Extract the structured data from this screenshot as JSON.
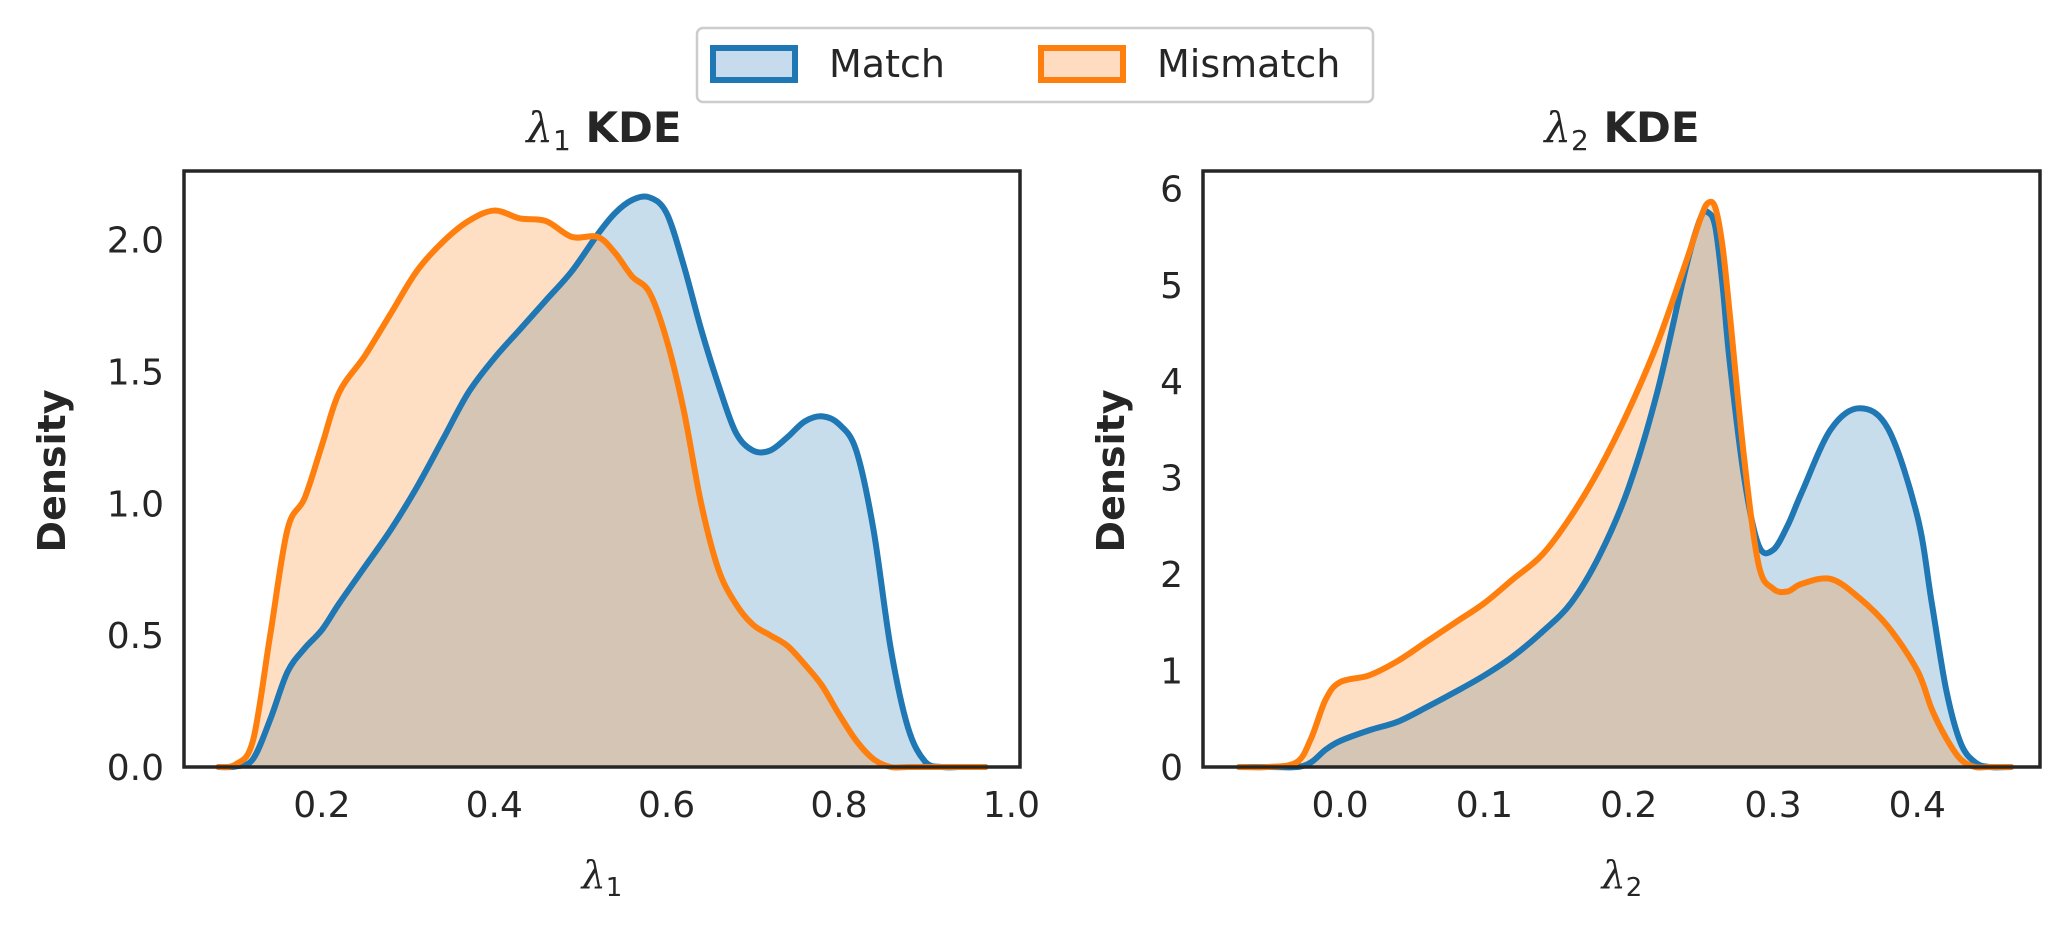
{
  "colors": {
    "match": "#1f77b4",
    "mismatch": "#ff7f0e",
    "frame": "#262626"
  },
  "legend": {
    "location": "top-center",
    "items": [
      "Match",
      "Mismatch"
    ]
  },
  "chart_data": [
    {
      "type": "area",
      "title_symbol": "λ",
      "title_sub": "1",
      "title_suffix": " KDE",
      "xlabel_symbol": "λ",
      "xlabel_sub": "1",
      "ylabel": "Density",
      "xlim": [
        0.04,
        1.01
      ],
      "ylim": [
        0,
        2.26
      ],
      "xticks": [
        0.2,
        0.4,
        0.6,
        0.8,
        1.0
      ],
      "xtick_labels": [
        "0.2",
        "0.4",
        "0.6",
        "0.8",
        "1.0"
      ],
      "yticks": [
        0.0,
        0.5,
        1.0,
        1.5,
        2.0
      ],
      "ytick_labels": [
        "0.0",
        "0.5",
        "1.0",
        "1.5",
        "2.0"
      ],
      "grid": false,
      "series": [
        {
          "name": "Match",
          "x": [
            0.08,
            0.1,
            0.12,
            0.14,
            0.16,
            0.18,
            0.2,
            0.22,
            0.25,
            0.28,
            0.31,
            0.34,
            0.37,
            0.4,
            0.43,
            0.46,
            0.49,
            0.52,
            0.54,
            0.56,
            0.58,
            0.6,
            0.62,
            0.64,
            0.66,
            0.68,
            0.7,
            0.72,
            0.74,
            0.76,
            0.78,
            0.8,
            0.82,
            0.84,
            0.86,
            0.88,
            0.9,
            0.92,
            0.94,
            0.97
          ],
          "y": [
            0.0,
            0.002,
            0.03,
            0.18,
            0.36,
            0.45,
            0.52,
            0.62,
            0.76,
            0.9,
            1.06,
            1.24,
            1.42,
            1.55,
            1.66,
            1.77,
            1.88,
            2.02,
            2.1,
            2.15,
            2.16,
            2.1,
            1.9,
            1.66,
            1.45,
            1.27,
            1.2,
            1.2,
            1.25,
            1.31,
            1.33,
            1.3,
            1.2,
            0.9,
            0.45,
            0.15,
            0.02,
            0.0,
            0.0,
            0.0
          ]
        },
        {
          "name": "Mismatch",
          "x": [
            0.08,
            0.1,
            0.12,
            0.14,
            0.16,
            0.18,
            0.2,
            0.22,
            0.25,
            0.28,
            0.31,
            0.34,
            0.37,
            0.4,
            0.43,
            0.46,
            0.49,
            0.52,
            0.54,
            0.56,
            0.58,
            0.6,
            0.62,
            0.64,
            0.66,
            0.68,
            0.7,
            0.72,
            0.74,
            0.76,
            0.78,
            0.8,
            0.82,
            0.84,
            0.86,
            0.88,
            0.9,
            0.92,
            0.94,
            0.97
          ],
          "y": [
            0.0,
            0.01,
            0.1,
            0.5,
            0.9,
            1.02,
            1.22,
            1.42,
            1.56,
            1.72,
            1.88,
            1.99,
            2.07,
            2.11,
            2.08,
            2.07,
            2.01,
            2.01,
            1.95,
            1.86,
            1.8,
            1.62,
            1.35,
            1.0,
            0.75,
            0.62,
            0.54,
            0.5,
            0.46,
            0.39,
            0.31,
            0.2,
            0.1,
            0.03,
            0.0,
            0.0,
            0.0,
            0.0,
            0.0,
            0.0
          ]
        }
      ]
    },
    {
      "type": "area",
      "title_symbol": "λ",
      "title_sub": "2",
      "title_suffix": " KDE",
      "xlabel_symbol": "λ",
      "xlabel_sub": "2",
      "ylabel": "Density",
      "xlim": [
        -0.095,
        0.485
      ],
      "ylim": [
        0,
        6.18
      ],
      "xticks": [
        0.0,
        0.1,
        0.2,
        0.3,
        0.4
      ],
      "xtick_labels": [
        "0.0",
        "0.1",
        "0.2",
        "0.3",
        "0.4"
      ],
      "yticks": [
        0,
        1,
        2,
        3,
        4,
        5,
        6
      ],
      "ytick_labels": [
        "0",
        "1",
        "2",
        "3",
        "4",
        "5",
        "6"
      ],
      "grid": false,
      "series": [
        {
          "name": "Match",
          "x": [
            -0.07,
            -0.05,
            -0.03,
            -0.02,
            -0.01,
            0.0,
            0.02,
            0.04,
            0.06,
            0.08,
            0.1,
            0.12,
            0.14,
            0.16,
            0.18,
            0.2,
            0.22,
            0.24,
            0.25,
            0.255,
            0.26,
            0.265,
            0.27,
            0.28,
            0.29,
            0.3,
            0.31,
            0.32,
            0.34,
            0.36,
            0.38,
            0.4,
            0.41,
            0.42,
            0.43,
            0.44,
            0.45,
            0.465
          ],
          "y": [
            0.0,
            0.0,
            0.0,
            0.05,
            0.18,
            0.27,
            0.38,
            0.47,
            0.62,
            0.78,
            0.95,
            1.15,
            1.4,
            1.7,
            2.2,
            2.9,
            3.9,
            5.2,
            5.7,
            5.75,
            5.6,
            5.0,
            4.2,
            3.0,
            2.3,
            2.25,
            2.5,
            2.85,
            3.5,
            3.72,
            3.5,
            2.6,
            1.7,
            0.8,
            0.25,
            0.05,
            0.0,
            0.0
          ]
        },
        {
          "name": "Mismatch",
          "x": [
            -0.07,
            -0.05,
            -0.03,
            -0.02,
            -0.01,
            0.0,
            0.02,
            0.04,
            0.06,
            0.08,
            0.1,
            0.12,
            0.14,
            0.16,
            0.18,
            0.2,
            0.22,
            0.24,
            0.25,
            0.255,
            0.26,
            0.265,
            0.27,
            0.28,
            0.29,
            0.3,
            0.31,
            0.32,
            0.34,
            0.36,
            0.38,
            0.4,
            0.41,
            0.42,
            0.43,
            0.44,
            0.45,
            0.465
          ],
          "y": [
            0.0,
            0.0,
            0.05,
            0.3,
            0.7,
            0.88,
            0.95,
            1.1,
            1.3,
            1.5,
            1.7,
            1.95,
            2.2,
            2.6,
            3.1,
            3.7,
            4.4,
            5.25,
            5.7,
            5.85,
            5.8,
            5.4,
            4.7,
            3.2,
            2.1,
            1.85,
            1.82,
            1.9,
            1.95,
            1.75,
            1.45,
            1.0,
            0.6,
            0.3,
            0.08,
            0.0,
            0.0,
            0.0
          ]
        }
      ]
    }
  ]
}
